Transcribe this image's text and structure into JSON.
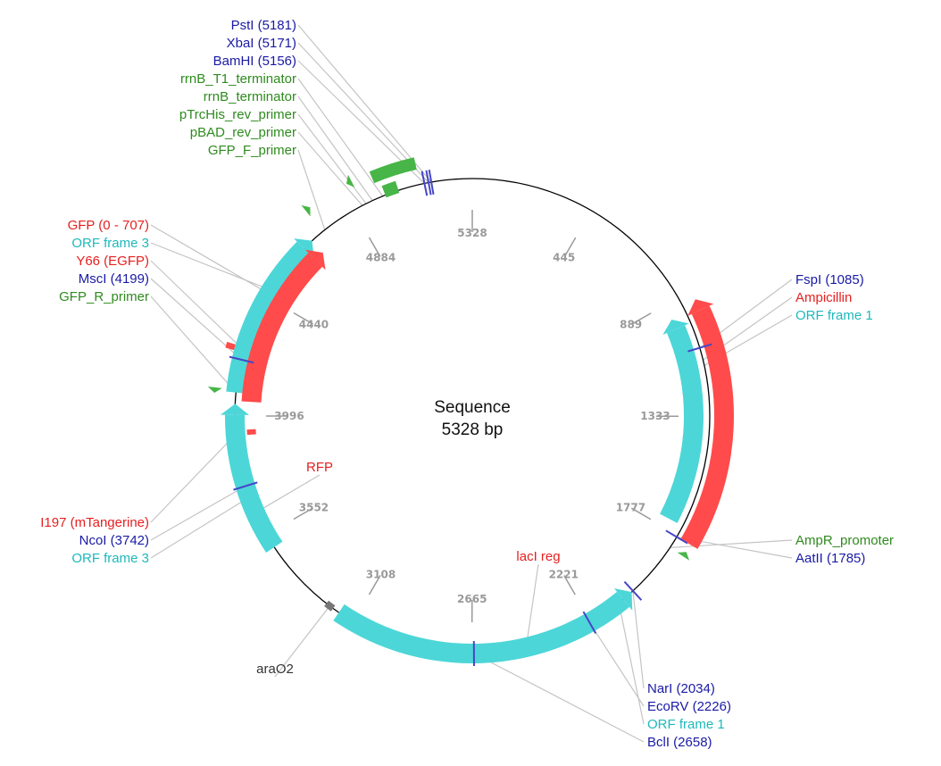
{
  "map": {
    "name": "Sequence",
    "length_label": "5328 bp",
    "length": 5328
  },
  "colors": {
    "enzyme": "#1a1aa6",
    "primer": "#2e8b1e",
    "orf": "#1fb8bb",
    "orf_fill": "#4dd6d8",
    "feature": "#e62020",
    "feature_fill": "#ff4b4b",
    "primer_fill": "#47b547",
    "misc": "#333333",
    "site_mark": "#4646c8"
  },
  "ticks": [
    {
      "pos": 0,
      "label": "5328"
    },
    {
      "pos": 445,
      "label": "445"
    },
    {
      "pos": 889,
      "label": "889"
    },
    {
      "pos": 1333,
      "label": "1333"
    },
    {
      "pos": 1777,
      "label": "1777"
    },
    {
      "pos": 2221,
      "label": "2221"
    },
    {
      "pos": 2665,
      "label": "2665"
    },
    {
      "pos": 3108,
      "label": "3108"
    },
    {
      "pos": 3552,
      "label": "3552"
    },
    {
      "pos": 3996,
      "label": "3996"
    },
    {
      "pos": 4440,
      "label": "4440"
    },
    {
      "pos": 4884,
      "label": "4884"
    }
  ],
  "labels_left_top": [
    {
      "text": "PstI (5181)",
      "kind": "enzyme",
      "pos": 5181
    },
    {
      "text": "XbaI (5171)",
      "kind": "enzyme",
      "pos": 5171
    },
    {
      "text": "BamHI (5156)",
      "kind": "enzyme",
      "pos": 5156
    },
    {
      "text": "rrnB_T1_terminator",
      "kind": "primer",
      "pos": 5000
    },
    {
      "text": "rrnB_terminator",
      "kind": "primer",
      "pos": 4960
    },
    {
      "text": "pTrcHis_rev_primer",
      "kind": "primer",
      "pos": 4935
    },
    {
      "text": "pBAD_rev_primer",
      "kind": "primer",
      "pos": 4920
    },
    {
      "text": "GFP_F_primer",
      "kind": "primer",
      "pos": 4760
    }
  ],
  "labels_left_mid": [
    {
      "text": "GFP (0 - 707)",
      "kind": "feature",
      "pos": 4455
    },
    {
      "text": "ORF frame 3",
      "kind": "orf",
      "pos": 4470
    },
    {
      "text": "Y66 (EGFP)",
      "kind": "feature",
      "pos": 4233
    },
    {
      "text": "MscI (4199)",
      "kind": "enzyme",
      "pos": 4199
    },
    {
      "text": "GFP_R_primer",
      "kind": "primer",
      "pos": 4080
    }
  ],
  "labels_left_bottom": [
    {
      "text": "I197 (mTangerine)",
      "kind": "feature",
      "pos": 3930
    },
    {
      "text": "NcoI (3742)",
      "kind": "enzyme",
      "pos": 3742
    },
    {
      "text": "ORF frame 3",
      "kind": "orf",
      "pos": 3700
    }
  ],
  "label_rfp": {
    "text": "RFP",
    "kind": "feature",
    "pos": 3640
  },
  "label_araO2": {
    "text": "araO2",
    "kind": "misc",
    "pos": 3210
  },
  "label_lacI": {
    "text": "lacI reg",
    "kind": "feature",
    "pos": 2470
  },
  "labels_right_top": [
    {
      "text": "FspI (1085)",
      "kind": "enzyme",
      "pos": 1085
    },
    {
      "text": "Ampicillin",
      "kind": "feature",
      "pos": 1130
    },
    {
      "text": "ORF frame 1",
      "kind": "orf",
      "pos": 1150
    }
  ],
  "labels_right_mid": [
    {
      "text": "AmpR_promoter",
      "kind": "primer",
      "pos": 1830
    },
    {
      "text": "AatII (1785)",
      "kind": "enzyme",
      "pos": 1785
    }
  ],
  "labels_right_bottom": [
    {
      "text": "NarI (2034)",
      "kind": "enzyme",
      "pos": 2034
    },
    {
      "text": "EcoRV (2226)",
      "kind": "enzyme",
      "pos": 2226
    },
    {
      "text": "ORF frame 1",
      "kind": "orf",
      "pos": 2100
    },
    {
      "text": "BclI (2658)",
      "kind": "enzyme",
      "pos": 2658
    }
  ],
  "features": [
    {
      "name": "Ampicillin",
      "kind": "feature",
      "start": 923,
      "end": 1784,
      "dir": -1,
      "track": "outer"
    },
    {
      "name": "ORF frame 1",
      "kind": "orf",
      "start": 950,
      "end": 1740,
      "dir": -1,
      "track": "inner"
    },
    {
      "name": "ORF frame 1",
      "kind": "orf",
      "start": 2040,
      "end": 3170,
      "dir": -1,
      "track": "mid"
    },
    {
      "name": "ORF frame 3",
      "kind": "orf",
      "start": 3500,
      "end": 4040,
      "dir": 1,
      "track": "mid"
    },
    {
      "name": "ORF frame 3",
      "kind": "orf",
      "start": 4080,
      "end": 4700,
      "dir": 1,
      "track": "mid"
    },
    {
      "name": "GFP (0 - 707)",
      "kind": "feature",
      "start": 4050,
      "end": 4700,
      "dir": 1,
      "track": "inner"
    }
  ],
  "small_marks": [
    {
      "name": "Y66 (EGFP)",
      "kind": "feature",
      "start": 4225,
      "end": 4245,
      "track": "outer"
    },
    {
      "name": "I197 (mTangerine)",
      "kind": "feature",
      "start": 3925,
      "end": 3945,
      "track": "inner"
    },
    {
      "name": "araO2",
      "kind": "misc",
      "start": 3195,
      "end": 3225,
      "track": "axis"
    }
  ],
  "primers": [
    {
      "name": "rrnB_T1_terminator",
      "start": 4990,
      "end": 5140,
      "track": "p1"
    },
    {
      "name": "rrnB_terminator",
      "start": 5010,
      "end": 5060,
      "track": "p2"
    },
    {
      "name": "pTrcHis_rev_primer",
      "pos": 4925,
      "dir": -1
    },
    {
      "name": "GFP_F_primer",
      "pos": 4750,
      "dir": 1
    },
    {
      "name": "GFP_R_primer",
      "pos": 4090,
      "dir": -1
    },
    {
      "name": "AmpR_promoter",
      "pos": 1830,
      "dir": -1
    }
  ],
  "sites": [
    1085,
    1785,
    2034,
    2226,
    2658,
    3742,
    4199,
    5156,
    5171,
    5181
  ]
}
